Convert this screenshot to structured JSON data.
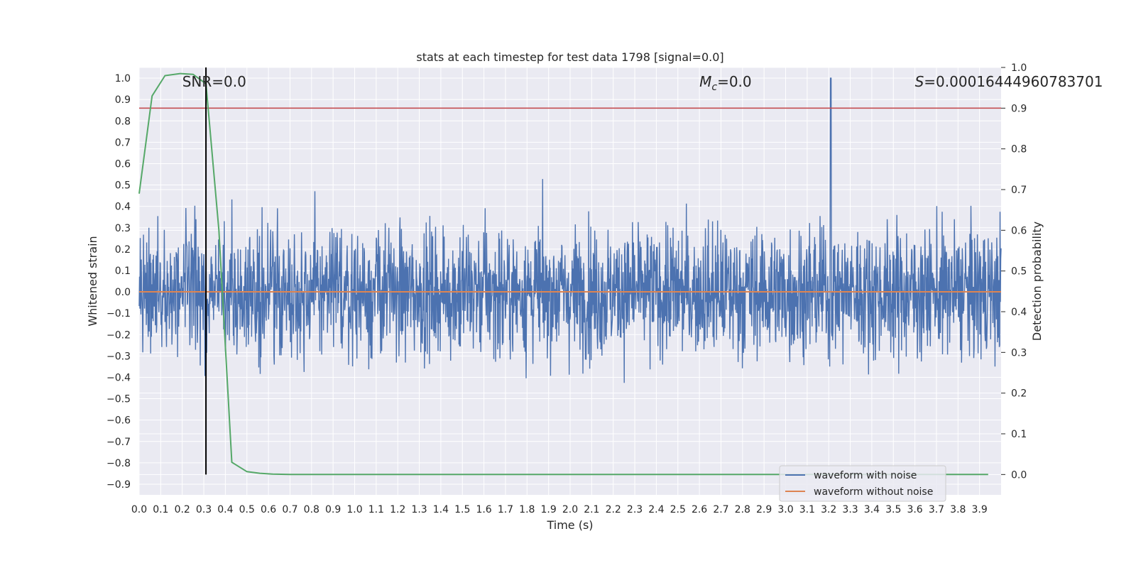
{
  "chart_data": {
    "type": "line",
    "title": "stats at each timestep for test data 1798 [signal=0.0]",
    "xlabel": "Time (s)",
    "ylabel": "Whitened strain",
    "y2label": "Detection probability",
    "xlim": [
      0.0,
      4.0
    ],
    "ylim": [
      -0.95,
      1.05
    ],
    "y2lim": [
      -0.05,
      1.0
    ],
    "xticks": [
      "0.0",
      "0.1",
      "0.2",
      "0.3",
      "0.4",
      "0.5",
      "0.6",
      "0.7",
      "0.8",
      "0.9",
      "1.0",
      "1.1",
      "1.2",
      "1.3",
      "1.4",
      "1.5",
      "1.6",
      "1.7",
      "1.8",
      "1.9",
      "2.0",
      "2.1",
      "2.2",
      "2.3",
      "2.4",
      "2.5",
      "2.6",
      "2.7",
      "2.8",
      "2.9",
      "3.0",
      "3.1",
      "3.2",
      "3.3",
      "3.4",
      "3.5",
      "3.6",
      "3.7",
      "3.8",
      "3.9"
    ],
    "yticks": [
      "-0.9",
      "-0.8",
      "-0.7",
      "-0.6",
      "-0.5",
      "-0.4",
      "-0.3",
      "-0.2",
      "-0.1",
      "0.0",
      "0.1",
      "0.2",
      "0.3",
      "0.4",
      "0.5",
      "0.6",
      "0.7",
      "0.8",
      "0.9",
      "1.0"
    ],
    "y2ticks": [
      "0.0",
      "0.1",
      "0.2",
      "0.3",
      "0.4",
      "0.5",
      "0.6",
      "0.7",
      "0.8",
      "0.9",
      "1.0"
    ],
    "grid": true,
    "legend_position": "lower-right",
    "annotations": {
      "snr": "SNR=0.0",
      "mc_symbol": "M",
      "mc_sub": "c",
      "mc_value": "=0.0",
      "s_symbol": "S",
      "s_value": "=0.00016444960783701"
    },
    "threshold_line": {
      "axis": "right",
      "value": 0.9,
      "color": "#c44e52"
    },
    "marker_line": {
      "x": 0.31,
      "color": "#000000"
    },
    "series": [
      {
        "name": "waveform with noise",
        "color": "#4c72b0",
        "style": "dense-noise",
        "x_range": [
          0.0,
          4.0
        ],
        "approx_std": 0.15,
        "peak": {
          "x": 3.21,
          "y": 1.0
        }
      },
      {
        "name": "waveform without noise",
        "color": "#dd8452",
        "x": [
          0.0,
          4.0
        ],
        "y": [
          0.0,
          0.0
        ]
      },
      {
        "axis": "right",
        "color": "#55a868",
        "x": [
          0.0,
          0.06,
          0.12,
          0.19,
          0.25,
          0.31,
          0.37,
          0.43,
          0.5,
          0.56,
          0.62,
          0.7,
          0.8,
          1.0,
          2.0,
          3.0,
          3.94
        ],
        "y": [
          0.69,
          0.93,
          0.98,
          0.985,
          0.983,
          0.96,
          0.6,
          0.03,
          0.007,
          0.003,
          0.001,
          0.0,
          0.0,
          0.0,
          0.0,
          0.0,
          0.0
        ]
      }
    ],
    "colors": {
      "background": "#eaeaf2",
      "grid": "#ffffff"
    }
  }
}
